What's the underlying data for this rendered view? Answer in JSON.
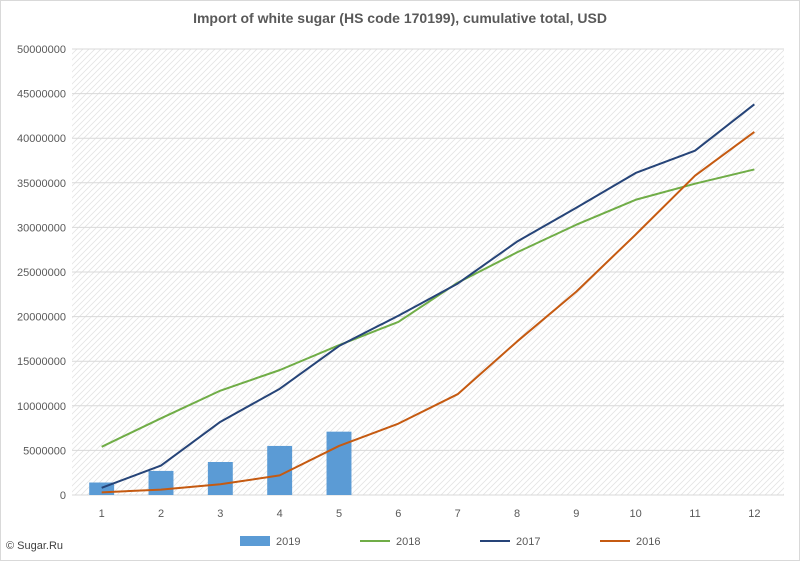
{
  "credit": "© Sugar.Ru",
  "chart_data": {
    "type": "bar+line",
    "title": "Import of white sugar (HS code 170199), cumulative total, USD",
    "xlabel": "",
    "ylabel": "",
    "categories": [
      1,
      2,
      3,
      4,
      5,
      6,
      7,
      8,
      9,
      10,
      11,
      12
    ],
    "ylim": [
      0,
      50000000
    ],
    "yticks": [
      0,
      5000000,
      10000000,
      15000000,
      20000000,
      25000000,
      30000000,
      35000000,
      40000000,
      45000000,
      50000000
    ],
    "grid": "diagonal hatch pattern",
    "legend": "bottom",
    "series": [
      {
        "name": "2019",
        "kind": "bar",
        "color": "#5b9bd5",
        "values": [
          1400000,
          2700000,
          3700000,
          5500000,
          7100000,
          null,
          null,
          null,
          null,
          null,
          null,
          null
        ]
      },
      {
        "name": "2018",
        "kind": "line",
        "color": "#70ad47",
        "values": [
          5400000,
          8600000,
          11700000,
          14000000,
          16800000,
          19400000,
          23800000,
          27200000,
          30300000,
          33100000,
          34900000,
          36500000
        ]
      },
      {
        "name": "2017",
        "kind": "line",
        "color": "#264478",
        "values": [
          800000,
          3300000,
          8200000,
          11900000,
          16700000,
          20100000,
          23700000,
          28400000,
          32200000,
          36100000,
          38600000,
          43800000
        ]
      },
      {
        "name": "2016",
        "kind": "line",
        "color": "#c55a11",
        "values": [
          300000,
          600000,
          1200000,
          2200000,
          5500000,
          8000000,
          11300000,
          17200000,
          22800000,
          29200000,
          35800000,
          40700000
        ]
      }
    ]
  }
}
